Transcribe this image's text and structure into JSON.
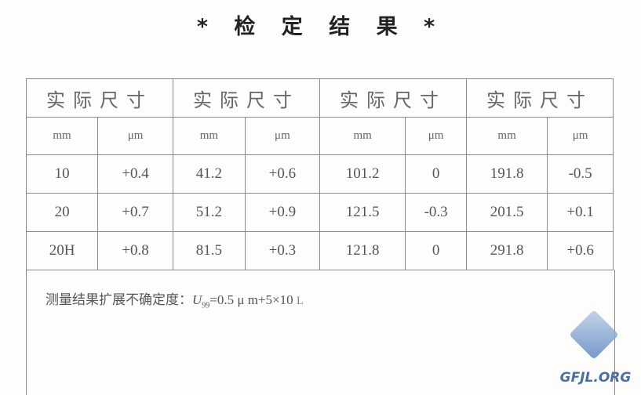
{
  "title": "* 检 定 结 果 *",
  "table": {
    "group_header": [
      "实际尺寸",
      "实际尺寸",
      "实际尺寸",
      "实际尺寸"
    ],
    "units": [
      "mm",
      "μm",
      "mm",
      "μm",
      "mm",
      "μm",
      "mm",
      "μm"
    ],
    "rows": [
      [
        "10",
        "+0.4",
        "41.2",
        "+0.6",
        "101.2",
        "0",
        "191.8",
        "-0.5"
      ],
      [
        "20",
        "+0.7",
        "51.2",
        "+0.9",
        "121.5",
        "-0.3",
        "201.5",
        "+0.1"
      ],
      [
        "20H",
        "+0.8",
        "81.5",
        "+0.3",
        "121.8",
        "0",
        "291.8",
        "+0.6"
      ]
    ]
  },
  "note": {
    "label": "测量结果扩展不确定度：",
    "symbol": "U",
    "subscript": "99",
    "formula": "=0.5 μ m+5×10",
    "tail": "L"
  },
  "logo": {
    "text": "GFJL.ORG"
  }
}
